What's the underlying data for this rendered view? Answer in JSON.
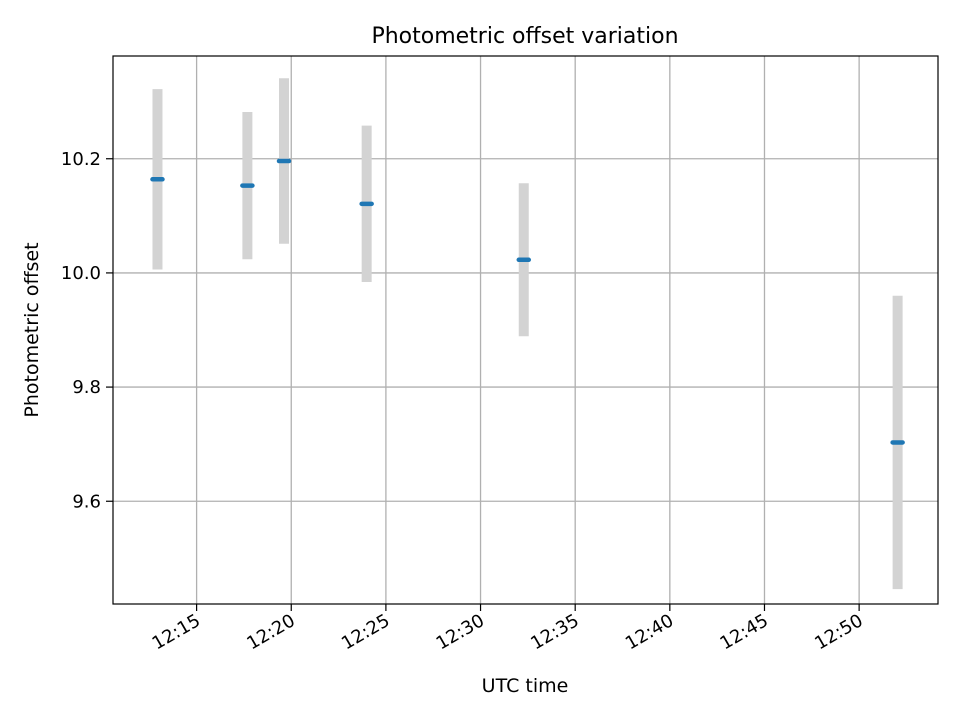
{
  "chart_data": {
    "type": "scatter",
    "title": "Photometric offset variation",
    "xlabel": "UTC time",
    "ylabel": "Photometric offset",
    "x_ticks": [
      "12:15",
      "12:20",
      "12:25",
      "12:30",
      "12:35",
      "12:40",
      "12:45",
      "12:50"
    ],
    "y_ticks": [
      "9.6",
      "9.8",
      "10.0",
      "10.2"
    ],
    "xlim": [
      "12:10:35",
      "12:54:10"
    ],
    "ylim": [
      9.42,
      10.38
    ],
    "grid": true,
    "series": [
      {
        "points": [
          {
            "x": "12:12:56",
            "y": 10.164,
            "err": 0.158
          },
          {
            "x": "12:17:41",
            "y": 10.153,
            "err": 0.129
          },
          {
            "x": "12:19:37",
            "y": 10.196,
            "err": 0.145
          },
          {
            "x": "12:23:59",
            "y": 10.121,
            "err": 0.137
          },
          {
            "x": "12:32:17",
            "y": 10.023,
            "err": 0.134
          },
          {
            "x": "12:52:02",
            "y": 9.703,
            "err": 0.257
          }
        ]
      }
    ],
    "colors": {
      "marker": "#1f77b4",
      "errorbar": "#d3d3d3",
      "grid": "#b0b0b0",
      "axes": "#000000"
    }
  }
}
